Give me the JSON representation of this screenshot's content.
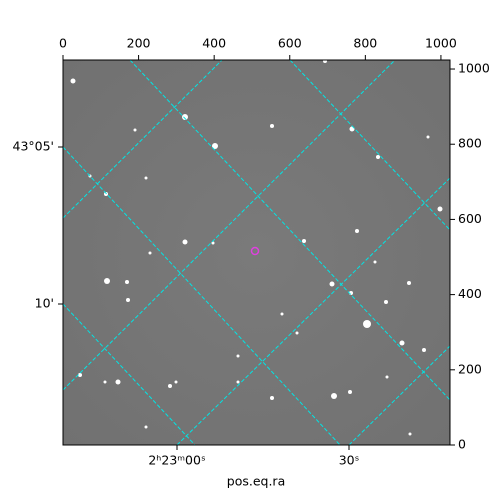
{
  "chart_data": {
    "type": "image",
    "xlabel": "pos.eq.ra",
    "xlim": [
      0,
      1024
    ],
    "xticks": [
      0,
      200,
      400,
      600,
      800,
      1000
    ],
    "ylim": [
      0,
      1024
    ],
    "yticks": [
      0,
      200,
      400,
      600,
      800,
      1000
    ],
    "ra_tick_labels": [
      "2ʰ23ᵐ00ˢ",
      "30ˢ"
    ],
    "dec_tick_labels": [
      "43°05'",
      "10'"
    ],
    "grid_color": "#00e5e5",
    "marker_color": "#e040e0"
  }
}
